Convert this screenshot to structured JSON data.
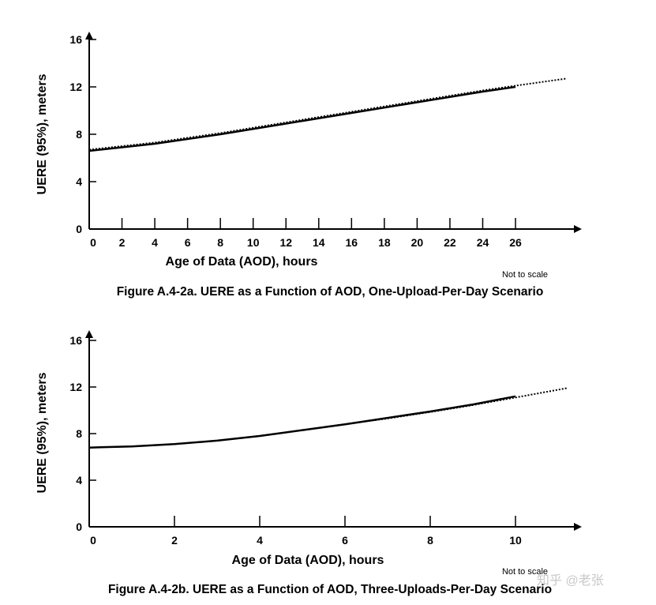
{
  "chart_data": [
    {
      "type": "line",
      "title": "Figure A.4-2a.  UERE as a Function of AOD, One-Upload-Per-Day Scenario",
      "xlabel": "Age of Data (AOD), hours",
      "ylabel": "UERE (95%), meters",
      "note": "Not to scale",
      "xlim": [
        0,
        30
      ],
      "ylim": [
        0,
        16
      ],
      "xticks": [
        "0",
        "2",
        "4",
        "6",
        "8",
        "10",
        "12",
        "14",
        "16",
        "18",
        "20",
        "22",
        "24",
        "26"
      ],
      "yticks": [
        "0",
        "4",
        "8",
        "12",
        "16"
      ],
      "series": [
        {
          "name": "solid",
          "style": "solid",
          "x": [
            0,
            4,
            8,
            12,
            16,
            20,
            24,
            26
          ],
          "y": [
            6.6,
            7.2,
            8.0,
            8.9,
            9.8,
            10.7,
            11.6,
            12.0
          ]
        },
        {
          "name": "dotted",
          "style": "dotted",
          "x": [
            0,
            4,
            8,
            12,
            16,
            20,
            24,
            26,
            29.1
          ],
          "y": [
            6.7,
            7.3,
            8.1,
            9.0,
            9.9,
            10.8,
            11.7,
            12.1,
            12.7
          ]
        }
      ]
    },
    {
      "type": "line",
      "title": "Figure A.4-2b.  UERE as a Function of AOD, Three-Uploads-Per-Day Scenario",
      "xlabel": "Age of Data (AOD), hours",
      "ylabel": "UERE (95%), meters",
      "note": "Not to scale",
      "xlim": [
        0,
        11.6
      ],
      "ylim": [
        0,
        16
      ],
      "xticks": [
        "0",
        "2",
        "4",
        "6",
        "8",
        "10"
      ],
      "yticks": [
        "0",
        "4",
        "8",
        "12",
        "16"
      ],
      "series": [
        {
          "name": "solid",
          "style": "solid",
          "x": [
            0,
            1,
            2,
            3,
            4,
            5,
            6,
            7,
            8,
            9,
            10
          ],
          "y": [
            6.8,
            6.9,
            7.1,
            7.4,
            7.8,
            8.3,
            8.8,
            9.35,
            9.9,
            10.5,
            11.2
          ]
        },
        {
          "name": "dotted",
          "style": "dotted",
          "x": [
            0,
            1,
            2,
            3,
            4,
            5,
            6,
            7,
            8,
            9,
            10,
            11.2
          ],
          "y": [
            6.8,
            6.9,
            7.1,
            7.4,
            7.8,
            8.3,
            8.8,
            9.3,
            9.85,
            10.45,
            11.1,
            11.9
          ]
        }
      ]
    }
  ],
  "watermark": "知乎 @老张"
}
